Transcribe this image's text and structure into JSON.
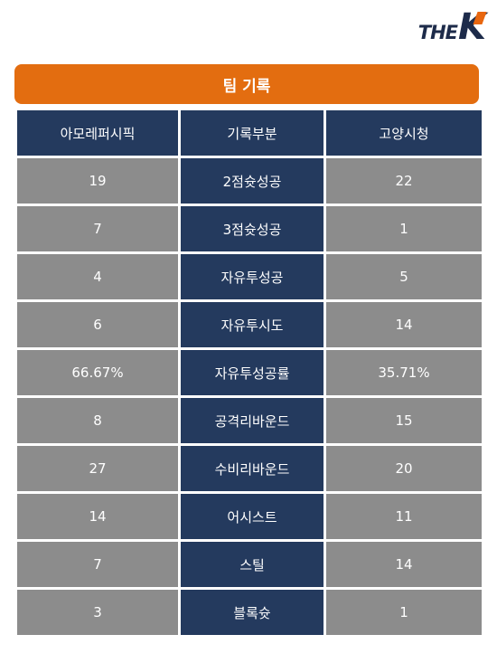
{
  "logo": {
    "the": "THE",
    "k": "K"
  },
  "banner": {
    "title": "팀 기록"
  },
  "table": {
    "headers": [
      "아모레퍼시픽",
      "기록부분",
      "고양시청"
    ],
    "rows": [
      {
        "left": "19",
        "category": "2점슛성공",
        "right": "22"
      },
      {
        "left": "7",
        "category": "3점슛성공",
        "right": "1"
      },
      {
        "left": "4",
        "category": "자유투성공",
        "right": "5"
      },
      {
        "left": "6",
        "category": "자유투시도",
        "right": "14"
      },
      {
        "left": "66.67%",
        "category": "자유투성공률",
        "right": "35.71%"
      },
      {
        "left": "8",
        "category": "공격리바운드",
        "right": "15"
      },
      {
        "left": "27",
        "category": "수비리바운드",
        "right": "20"
      },
      {
        "left": "14",
        "category": "어시스트",
        "right": "11"
      },
      {
        "left": "7",
        "category": "스틸",
        "right": "14"
      },
      {
        "left": "3",
        "category": "블록슛",
        "right": "1"
      }
    ]
  },
  "colors": {
    "accent": "#e36d10",
    "navy": "#243a5e",
    "gray": "#8c8c8c"
  }
}
